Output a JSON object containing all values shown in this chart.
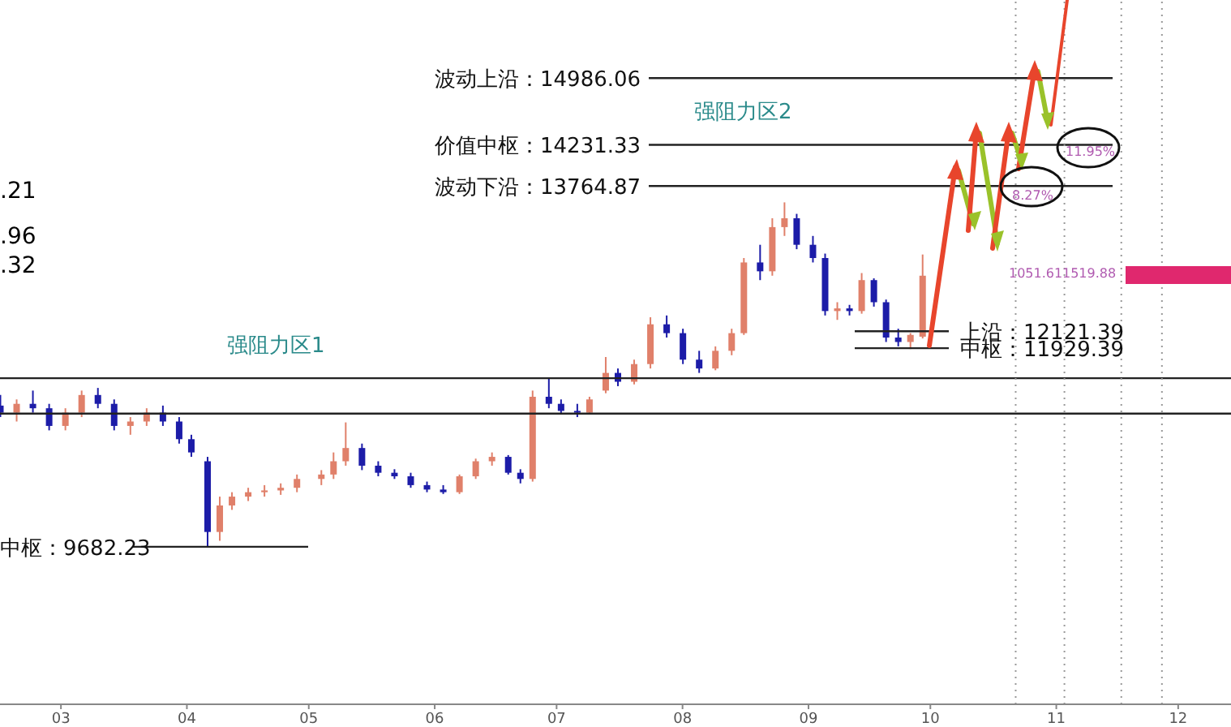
{
  "chart_data": {
    "type": "candlestick",
    "x": [
      "--02-15",
      "--02-19",
      "--02-23",
      "--02-27",
      "--03-02",
      "--03-06",
      "--03-10",
      "--03-14",
      "--03-18",
      "--03-22",
      "--03-26",
      "--03-30",
      "--04-02",
      "--04-06",
      "--04-09",
      "--04-12",
      "--04-16",
      "--04-20",
      "--04-24",
      "--04-28",
      "--05-04",
      "--05-07",
      "--05-10",
      "--05-14",
      "--05-18",
      "--05-22",
      "--05-26",
      "--05-30",
      "--06-03",
      "--06-07",
      "--06-11",
      "--06-15",
      "--06-19",
      "--06-22",
      "--06-25",
      "--06-29",
      "--07-02",
      "--07-06",
      "--07-09",
      "--07-13",
      "--07-16",
      "--07-20",
      "--07-24",
      "--07-28",
      "--08-01",
      "--08-05",
      "--08-09",
      "--08-13",
      "--08-16",
      "--08-20",
      "--08-23",
      "--08-26",
      "--08-29",
      "--09-02",
      "--09-05",
      "--09-08",
      "--09-11",
      "--09-14",
      "--09-17",
      "--09-20",
      "--09-23",
      "--09-26",
      "--09-29"
    ],
    "ohlc": [
      [
        11280,
        11400,
        11150,
        11200
      ],
      [
        11200,
        11350,
        11100,
        11300
      ],
      [
        11300,
        11450,
        11200,
        11250
      ],
      [
        11250,
        11300,
        11000,
        11050
      ],
      [
        11050,
        11250,
        11000,
        11200
      ],
      [
        11200,
        11450,
        11150,
        11400
      ],
      [
        11400,
        11480,
        11250,
        11300
      ],
      [
        11300,
        11350,
        11000,
        11050
      ],
      [
        11050,
        11150,
        10950,
        11100
      ],
      [
        11100,
        11250,
        11050,
        11200
      ],
      [
        11200,
        11280,
        11050,
        11100
      ],
      [
        11100,
        11150,
        10850,
        10900
      ],
      [
        10900,
        10950,
        10700,
        10750
      ],
      [
        10650,
        10700,
        9680,
        9850
      ],
      [
        9850,
        10250,
        9750,
        10150
      ],
      [
        10150,
        10300,
        10100,
        10250
      ],
      [
        10250,
        10350,
        10200,
        10300
      ],
      [
        10300,
        10380,
        10250,
        10320
      ],
      [
        10320,
        10400,
        10270,
        10350
      ],
      [
        10350,
        10500,
        10300,
        10450
      ],
      [
        10450,
        10550,
        10380,
        10500
      ],
      [
        10500,
        10750,
        10450,
        10650
      ],
      [
        10650,
        11090,
        10600,
        10800
      ],
      [
        10800,
        10850,
        10550,
        10600
      ],
      [
        10600,
        10650,
        10480,
        10520
      ],
      [
        10520,
        10560,
        10450,
        10480
      ],
      [
        10480,
        10520,
        10350,
        10380
      ],
      [
        10380,
        10420,
        10300,
        10330
      ],
      [
        10330,
        10380,
        10280,
        10300
      ],
      [
        10300,
        10500,
        10280,
        10480
      ],
      [
        10480,
        10680,
        10450,
        10650
      ],
      [
        10650,
        10750,
        10600,
        10700
      ],
      [
        10700,
        10720,
        10500,
        10520
      ],
      [
        10520,
        10560,
        10400,
        10450
      ],
      [
        10450,
        11450,
        10420,
        11380
      ],
      [
        11380,
        11590,
        11250,
        11300
      ],
      [
        11300,
        11350,
        11180,
        11220
      ],
      [
        11220,
        11300,
        11150,
        11200
      ],
      [
        11200,
        11380,
        11180,
        11350
      ],
      [
        11450,
        11830,
        11420,
        11650
      ],
      [
        11650,
        11700,
        11500,
        11550
      ],
      [
        11550,
        11800,
        11520,
        11750
      ],
      [
        11750,
        12280,
        11700,
        12200
      ],
      [
        12200,
        12300,
        12050,
        12100
      ],
      [
        12100,
        12150,
        11750,
        11800
      ],
      [
        11800,
        11900,
        11650,
        11700
      ],
      [
        11700,
        11950,
        11680,
        11900
      ],
      [
        11900,
        12150,
        11850,
        12100
      ],
      [
        12100,
        12950,
        12080,
        12900
      ],
      [
        12900,
        13100,
        12700,
        12800
      ],
      [
        12800,
        13400,
        12750,
        13300
      ],
      [
        13300,
        13580,
        13200,
        13400
      ],
      [
        13400,
        13450,
        13050,
        13100
      ],
      [
        13100,
        13200,
        12900,
        12950
      ],
      [
        12950,
        13000,
        12300,
        12350
      ],
      [
        12350,
        12450,
        12250,
        12380
      ],
      [
        12380,
        12420,
        12300,
        12350
      ],
      [
        12350,
        12780,
        12320,
        12700
      ],
      [
        12700,
        12720,
        12400,
        12450
      ],
      [
        12450,
        12480,
        12000,
        12050
      ],
      [
        12050,
        12150,
        11950,
        12000
      ],
      [
        12000,
        12100,
        11920,
        12080
      ],
      [
        12060,
        12990,
        12040,
        12750
      ]
    ],
    "colors": [
      "#1c1ca8",
      "#e0806a",
      "#1c1ca8",
      "#1c1ca8",
      "#e0806a",
      "#e0806a",
      "#1c1ca8",
      "#1c1ca8",
      "#e0806a",
      "#e0806a",
      "#1c1ca8",
      "#1c1ca8",
      "#1c1ca8",
      "#1c1ca8",
      "#e0806a",
      "#e0806a",
      "#e0806a",
      "#e0806a",
      "#e0806a",
      "#e0806a",
      "#e0806a",
      "#e0806a",
      "#e0806a",
      "#1c1ca8",
      "#1c1ca8",
      "#1c1ca8",
      "#1c1ca8",
      "#1c1ca8",
      "#1c1ca8",
      "#e0806a",
      "#e0806a",
      "#e0806a",
      "#1c1ca8",
      "#1c1ca8",
      "#e0806a",
      "#1c1ca8",
      "#1c1ca8",
      "#1c1ca8",
      "#e0806a",
      "#e0806a",
      "#1c1ca8",
      "#e0806a",
      "#e0806a",
      "#1c1ca8",
      "#1c1ca8",
      "#1c1ca8",
      "#e0806a",
      "#e0806a",
      "#e0806a",
      "#1c1ca8",
      "#e0806a",
      "#e0806a",
      "#1c1ca8",
      "#1c1ca8",
      "#1c1ca8",
      "#e0806a",
      "#1c1ca8",
      "#e0806a",
      "#1c1ca8",
      "#1c1ca8",
      "#1c1ca8",
      "#e0806a",
      "#e0806a"
    ],
    "xlim": [
      "--02-15",
      "--12-14"
    ],
    "xticks": [
      {
        "value": "--03-01",
        "label": "03"
      },
      {
        "value": "--04-01",
        "label": "04"
      },
      {
        "value": "--05-01",
        "label": "05"
      },
      {
        "value": "--06-01",
        "label": "06"
      },
      {
        "value": "--07-01",
        "label": "07"
      },
      {
        "value": "--08-01",
        "label": "08"
      },
      {
        "value": "--09-01",
        "label": "09"
      },
      {
        "value": "--10-01",
        "label": "10"
      },
      {
        "value": "--11-01",
        "label": "11"
      },
      {
        "value": "--12-01",
        "label": "12"
      }
    ],
    "ylim": [
      7900,
      15870
    ],
    "tick_labels": "x",
    "ref_lines": [
      {
        "axis": "y",
        "value": 14986.06,
        "label": "波动上沿：14986.06"
      },
      {
        "axis": "y",
        "value": 14231.33,
        "label": "价值中枢：14231.33"
      },
      {
        "axis": "y",
        "value": 13764.87,
        "label": "波动下沿：13764.87"
      },
      {
        "axis": "y",
        "value": 12121.39,
        "label": "上沿：12121.39"
      },
      {
        "axis": "y",
        "value": 11929.39,
        "label": "中枢：11929.39"
      },
      {
        "axis": "y",
        "value": 9682.23,
        "label": "中枢：9682.23"
      },
      {
        "axis": "y",
        "value": 11590
      },
      {
        "axis": "y",
        "value": 11190
      },
      {
        "axis": "x",
        "value": "--10-22",
        "line_style": "dotted"
      },
      {
        "axis": "x",
        "value": "--11-03",
        "line_style": "dotted"
      },
      {
        "axis": "x",
        "value": "--11-17",
        "line_style": "dotted"
      },
      {
        "axis": "x",
        "value": "--11-27",
        "line_style": "dotted"
      }
    ],
    "annotations": [
      ".21",
      ".96",
      ".32",
      "强阻力区1",
      "强阻力区2",
      "8.27%",
      "11.95%",
      "1051.61",
      "1519.88"
    ]
  }
}
